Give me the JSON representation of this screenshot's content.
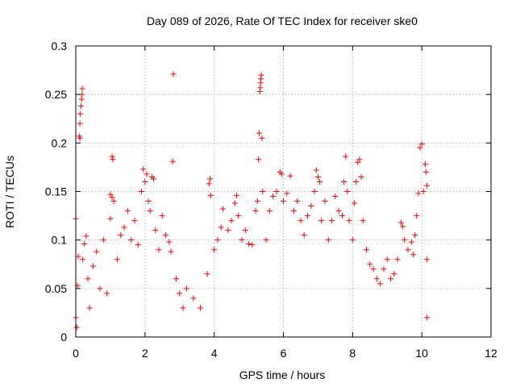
{
  "chart_data": {
    "type": "scatter",
    "title": "Day 089 of 2026, Rate Of TEC Index for receiver ske0",
    "xlabel": "GPS time / hours",
    "ylabel": "ROTI / TECUs",
    "xlim": [
      0,
      12
    ],
    "ylim": [
      0,
      0.3
    ],
    "x_ticks": [
      0,
      2,
      4,
      6,
      8,
      10,
      12
    ],
    "x_tick_labels": [
      "0",
      "2",
      "4",
      "6",
      "8",
      "10",
      "12"
    ],
    "y_ticks": [
      0,
      0.05,
      0.1,
      0.15,
      0.2,
      0.25,
      0.3
    ],
    "y_tick_labels": [
      "0",
      "0.05",
      "0.1",
      "0.15",
      "0.2",
      "0.25",
      "0.3"
    ],
    "grid": true,
    "marker": "+",
    "series_color": "#ff0000",
    "series": [
      {
        "name": "ROTI",
        "points": [
          [
            0.0,
            0.122
          ],
          [
            0.0,
            0.02
          ],
          [
            0.03,
            0.01
          ],
          [
            0.05,
            0.053
          ],
          [
            0.07,
            0.083
          ],
          [
            0.1,
            0.207
          ],
          [
            0.12,
            0.22
          ],
          [
            0.13,
            0.23
          ],
          [
            0.15,
            0.238
          ],
          [
            0.17,
            0.245
          ],
          [
            0.18,
            0.25
          ],
          [
            0.19,
            0.256
          ],
          [
            0.12,
            0.205
          ],
          [
            0.2,
            0.08
          ],
          [
            0.25,
            0.096
          ],
          [
            0.3,
            0.104
          ],
          [
            0.35,
            0.06
          ],
          [
            0.4,
            0.03
          ],
          [
            0.5,
            0.073
          ],
          [
            0.6,
            0.088
          ],
          [
            0.7,
            0.05
          ],
          [
            0.8,
            0.1
          ],
          [
            0.9,
            0.045
          ],
          [
            1.0,
            0.122
          ],
          [
            1.0,
            0.147
          ],
          [
            1.05,
            0.144
          ],
          [
            1.05,
            0.186
          ],
          [
            1.07,
            0.183
          ],
          [
            1.1,
            0.14
          ],
          [
            1.2,
            0.08
          ],
          [
            1.3,
            0.105
          ],
          [
            1.4,
            0.113
          ],
          [
            1.5,
            0.13
          ],
          [
            1.6,
            0.1
          ],
          [
            1.7,
            0.12
          ],
          [
            1.8,
            0.095
          ],
          [
            1.9,
            0.15
          ],
          [
            1.95,
            0.173
          ],
          [
            2.0,
            0.16
          ],
          [
            2.05,
            0.168
          ],
          [
            2.1,
            0.14
          ],
          [
            2.15,
            0.13
          ],
          [
            2.2,
            0.165
          ],
          [
            2.25,
            0.163
          ],
          [
            2.3,
            0.11
          ],
          [
            2.4,
            0.09
          ],
          [
            2.5,
            0.125
          ],
          [
            2.6,
            0.105
          ],
          [
            2.7,
            0.098
          ],
          [
            2.75,
            0.088
          ],
          [
            2.8,
            0.181
          ],
          [
            2.82,
            0.271
          ],
          [
            2.9,
            0.06
          ],
          [
            3.0,
            0.045
          ],
          [
            3.1,
            0.03
          ],
          [
            3.2,
            0.05
          ],
          [
            3.4,
            0.04
          ],
          [
            3.6,
            0.03
          ],
          [
            3.8,
            0.065
          ],
          [
            3.85,
            0.158
          ],
          [
            3.88,
            0.163
          ],
          [
            3.9,
            0.146
          ],
          [
            4.0,
            0.09
          ],
          [
            4.1,
            0.1
          ],
          [
            4.2,
            0.113
          ],
          [
            4.25,
            0.132
          ],
          [
            4.4,
            0.11
          ],
          [
            4.5,
            0.12
          ],
          [
            4.6,
            0.138
          ],
          [
            4.65,
            0.146
          ],
          [
            4.7,
            0.125
          ],
          [
            4.8,
            0.1
          ],
          [
            4.9,
            0.11
          ],
          [
            5.0,
            0.096
          ],
          [
            5.1,
            0.095
          ],
          [
            5.2,
            0.13
          ],
          [
            5.25,
            0.14
          ],
          [
            5.28,
            0.183
          ],
          [
            5.3,
            0.21
          ],
          [
            5.32,
            0.253
          ],
          [
            5.33,
            0.257
          ],
          [
            5.34,
            0.262
          ],
          [
            5.35,
            0.266
          ],
          [
            5.36,
            0.27
          ],
          [
            5.38,
            0.205
          ],
          [
            5.4,
            0.15
          ],
          [
            5.5,
            0.1
          ],
          [
            5.6,
            0.13
          ],
          [
            5.7,
            0.145
          ],
          [
            5.8,
            0.15
          ],
          [
            5.9,
            0.17
          ],
          [
            5.95,
            0.168
          ],
          [
            6.0,
            0.14
          ],
          [
            6.1,
            0.148
          ],
          [
            6.2,
            0.166
          ],
          [
            6.3,
            0.13
          ],
          [
            6.4,
            0.14
          ],
          [
            6.5,
            0.12
          ],
          [
            6.6,
            0.105
          ],
          [
            6.7,
            0.125
          ],
          [
            6.8,
            0.135
          ],
          [
            6.9,
            0.15
          ],
          [
            6.95,
            0.172
          ],
          [
            7.0,
            0.165
          ],
          [
            7.05,
            0.16
          ],
          [
            7.1,
            0.12
          ],
          [
            7.2,
            0.14
          ],
          [
            7.3,
            0.1
          ],
          [
            7.4,
            0.12
          ],
          [
            7.5,
            0.145
          ],
          [
            7.6,
            0.13
          ],
          [
            7.7,
            0.125
          ],
          [
            7.75,
            0.16
          ],
          [
            7.8,
            0.186
          ],
          [
            7.85,
            0.15
          ],
          [
            7.9,
            0.12
          ],
          [
            8.0,
            0.1
          ],
          [
            8.05,
            0.138
          ],
          [
            8.1,
            0.16
          ],
          [
            8.15,
            0.18
          ],
          [
            8.2,
            0.183
          ],
          [
            8.25,
            0.165
          ],
          [
            8.3,
            0.12
          ],
          [
            8.4,
            0.09
          ],
          [
            8.5,
            0.075
          ],
          [
            8.6,
            0.07
          ],
          [
            8.7,
            0.06
          ],
          [
            8.8,
            0.055
          ],
          [
            8.9,
            0.07
          ],
          [
            9.0,
            0.08
          ],
          [
            9.1,
            0.06
          ],
          [
            9.2,
            0.065
          ],
          [
            9.3,
            0.08
          ],
          [
            9.4,
            0.118
          ],
          [
            9.45,
            0.114
          ],
          [
            9.5,
            0.1
          ],
          [
            9.6,
            0.09
          ],
          [
            9.7,
            0.098
          ],
          [
            9.75,
            0.085
          ],
          [
            9.8,
            0.105
          ],
          [
            9.85,
            0.125
          ],
          [
            9.9,
            0.148
          ],
          [
            9.95,
            0.195
          ],
          [
            10.0,
            0.199
          ],
          [
            10.05,
            0.15
          ],
          [
            10.1,
            0.178
          ],
          [
            10.12,
            0.17
          ],
          [
            10.15,
            0.156
          ],
          [
            10.15,
            0.08
          ],
          [
            10.15,
            0.02
          ]
        ]
      }
    ]
  }
}
